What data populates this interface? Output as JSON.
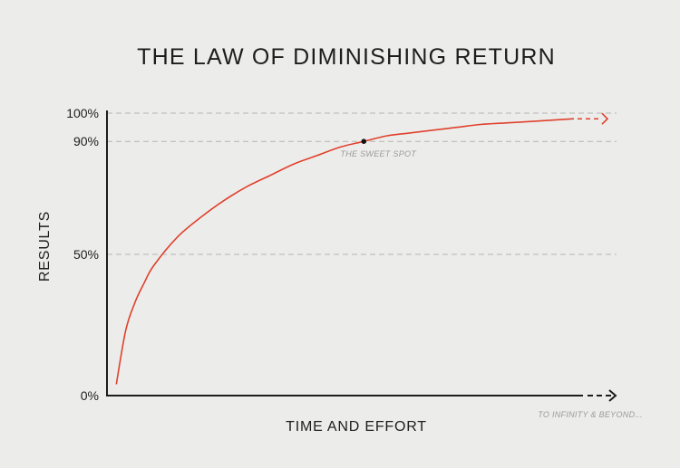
{
  "chart_data": {
    "type": "line",
    "title": "THE LAW OF DIMINISHING RETURN",
    "xlabel": "TIME AND EFFORT",
    "ylabel": "RESULTS",
    "y_ticks": [
      {
        "value": 0,
        "label": "0%"
      },
      {
        "value": 50,
        "label": "50%"
      },
      {
        "value": 90,
        "label": "90%"
      },
      {
        "value": 100,
        "label": "100%"
      }
    ],
    "ylim": [
      0,
      100
    ],
    "xlim": [
      0,
      100
    ],
    "grid_lines_at": [
      50,
      90,
      100
    ],
    "series": [
      {
        "color": "#e0402c",
        "x": [
          2,
          4,
          6,
          8,
          10,
          15,
          20,
          25,
          30,
          35,
          40,
          45,
          50,
          55,
          60,
          65,
          70,
          75,
          80,
          85,
          90,
          95,
          100
        ],
        "y": [
          4,
          23,
          33,
          40,
          46,
          56,
          63,
          69,
          74,
          78,
          82,
          85,
          88,
          90,
          92,
          93,
          94,
          95,
          96,
          96.5,
          97,
          97.5,
          98
        ]
      }
    ],
    "sweet_spot": {
      "x": 55,
      "y": 90,
      "label": "THE SWEET SPOT"
    },
    "x_axis_note": "TO INFINITY & BEYOND..."
  },
  "colors": {
    "background": "#ecedeb",
    "curve": "#e0402c",
    "axis": "#1d1d1d",
    "grid": "#b3b3b3",
    "note": "#9a9a9a"
  }
}
